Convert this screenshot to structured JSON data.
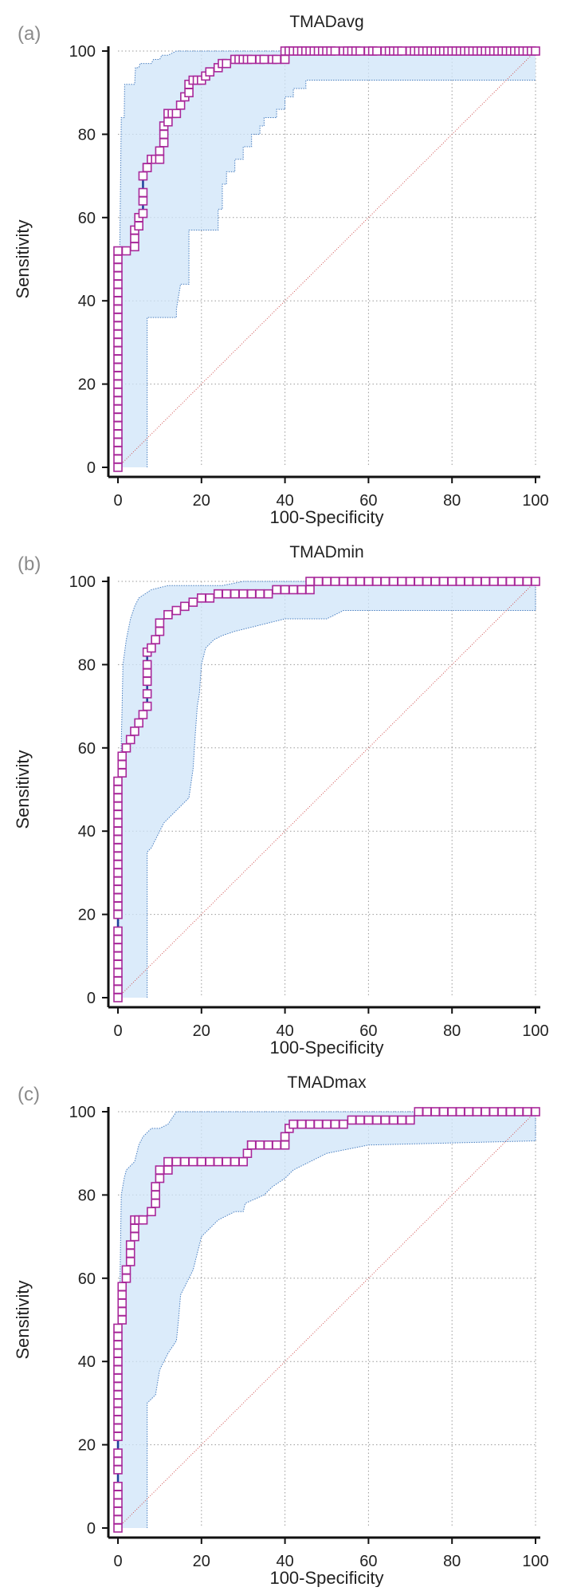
{
  "colors": {
    "marker": "#a8289a",
    "marker_fill": "#ffffff",
    "roc_line": "#1f3f9a",
    "ci_fill": "#cfe4f8",
    "ci_stroke": "#4a7fc0",
    "diagonal": "#d05050",
    "grid": "#9a9a9a",
    "axis": "#111111"
  },
  "chart_data": [
    {
      "panel_label": "(a)",
      "type": "line",
      "title": "TMADavg",
      "xlabel": "100-Specificity",
      "ylabel": "Sensitivity",
      "xlim": [
        0,
        100
      ],
      "ylim": [
        0,
        100
      ],
      "x_ticks": [
        "0",
        "20",
        "40",
        "60",
        "80",
        "100"
      ],
      "y_ticks": [
        "0",
        "20",
        "40",
        "60",
        "80",
        "100"
      ],
      "grid": true,
      "roc": {
        "x": [
          0,
          0,
          0,
          0,
          0,
          0,
          0,
          0,
          0,
          0,
          0,
          0,
          0,
          0,
          0,
          0,
          0,
          0,
          0,
          0,
          0,
          0,
          0,
          0,
          0,
          0,
          0,
          2,
          4,
          4,
          4,
          5,
          5,
          6,
          6,
          6,
          6,
          7,
          7,
          7,
          8,
          9,
          10,
          10,
          11,
          11,
          11,
          12,
          12,
          13,
          14,
          15,
          16,
          17,
          17,
          18,
          19,
          20,
          21,
          22,
          24,
          25,
          26,
          28,
          29,
          30,
          31,
          32,
          34,
          35,
          37,
          38,
          40,
          40,
          41,
          42,
          43,
          44,
          45,
          46,
          47,
          48,
          49,
          50,
          51,
          52,
          54,
          55,
          56,
          57,
          58,
          60,
          61,
          62,
          64,
          65,
          66,
          67,
          68,
          70,
          71,
          72,
          73,
          74,
          75,
          76,
          77,
          78,
          79,
          80,
          81,
          82,
          83,
          84,
          85,
          86,
          87,
          88,
          89,
          90,
          91,
          92,
          93,
          94,
          95,
          96,
          97,
          98,
          99,
          100
        ],
        "y": [
          0,
          2,
          4,
          6,
          8,
          10,
          12,
          14,
          16,
          18,
          20,
          22,
          24,
          26,
          28,
          30,
          32,
          34,
          36,
          38,
          40,
          42,
          44,
          46,
          48,
          50,
          52,
          52,
          53,
          55,
          57,
          58,
          60,
          61,
          64,
          66,
          70,
          72,
          72,
          72,
          74,
          74,
          74,
          76,
          78,
          80,
          82,
          83,
          85,
          85,
          85,
          87,
          89,
          90,
          92,
          93,
          93,
          93,
          94,
          95,
          96,
          97,
          97,
          98,
          98,
          98,
          98,
          98,
          98,
          98,
          98,
          98,
          98,
          100,
          100,
          100,
          100,
          100,
          100,
          100,
          100,
          100,
          100,
          100,
          100,
          100,
          100,
          100,
          100,
          100,
          100,
          100,
          100,
          100,
          100,
          100,
          100,
          100,
          100,
          100,
          100,
          100,
          100,
          100,
          100,
          100,
          100,
          100,
          100,
          100,
          100,
          100,
          100,
          100,
          100,
          100,
          100,
          100,
          100,
          100,
          100,
          100,
          100,
          100,
          100,
          100,
          100,
          100,
          100,
          100
        ]
      },
      "ci_upper": {
        "x": [
          0,
          0.5,
          0.8,
          1.5,
          1.6,
          4,
          4.2,
          5,
          5.3,
          8,
          8.5,
          10,
          10.5,
          12,
          14,
          40,
          40.5,
          100
        ],
        "y": [
          0,
          58,
          84,
          84,
          92,
          92,
          96,
          96,
          97,
          97,
          98,
          98,
          99,
          99,
          100,
          100,
          100,
          100
        ]
      },
      "ci_lower": {
        "x": [
          7,
          7,
          14,
          14,
          15,
          17,
          17,
          24,
          24,
          25,
          25,
          26,
          26,
          28,
          28,
          30,
          30,
          32,
          32,
          34,
          34,
          35,
          35,
          38,
          38,
          40,
          40,
          42,
          42,
          45,
          45,
          55,
          55,
          100
        ],
        "y": [
          0,
          36,
          36,
          38,
          44,
          44,
          57,
          57,
          62,
          62,
          68,
          68,
          71,
          71,
          74,
          74,
          77,
          77,
          80,
          80,
          82,
          82,
          84,
          84,
          86,
          86,
          89,
          89,
          91,
          91,
          93,
          93,
          93,
          93
        ]
      }
    },
    {
      "panel_label": "(b)",
      "type": "line",
      "title": "TMADmin",
      "xlabel": "100-Specificity",
      "ylabel": "Sensitivity",
      "xlim": [
        0,
        100
      ],
      "ylim": [
        0,
        100
      ],
      "x_ticks": [
        "0",
        "20",
        "40",
        "60",
        "80",
        "100"
      ],
      "y_ticks": [
        "0",
        "20",
        "40",
        "60",
        "80",
        "100"
      ],
      "grid": true,
      "roc": {
        "x": [
          0,
          0,
          0,
          0,
          0,
          0,
          0,
          0,
          0,
          0,
          0,
          0,
          0,
          0,
          0,
          0,
          0,
          0,
          0,
          0,
          0,
          0,
          0,
          0,
          0,
          0,
          1,
          1,
          1,
          2,
          3,
          4,
          5,
          6,
          7,
          7,
          7,
          7,
          7,
          7,
          8,
          9,
          10,
          10,
          12,
          14,
          16,
          18,
          20,
          22,
          24,
          26,
          28,
          30,
          32,
          34,
          36,
          38,
          40,
          42,
          44,
          46,
          46,
          48,
          50,
          52,
          54,
          56,
          58,
          60,
          62,
          64,
          66,
          68,
          70,
          72,
          74,
          76,
          78,
          80,
          82,
          84,
          86,
          88,
          90,
          92,
          94,
          96,
          98,
          100
        ],
        "y": [
          0,
          2,
          4,
          6,
          8,
          10,
          12,
          14,
          16,
          20,
          22,
          24,
          26,
          28,
          30,
          32,
          34,
          36,
          38,
          40,
          42,
          44,
          46,
          48,
          50,
          52,
          54,
          56,
          58,
          60,
          62,
          64,
          66,
          68,
          70,
          73,
          76,
          78,
          80,
          83,
          84,
          86,
          88,
          90,
          92,
          93,
          94,
          95,
          96,
          96,
          97,
          97,
          97,
          97,
          97,
          97,
          97,
          98,
          98,
          98,
          98,
          98,
          100,
          100,
          100,
          100,
          100,
          100,
          100,
          100,
          100,
          100,
          100,
          100,
          100,
          100,
          100,
          100,
          100,
          100,
          100,
          100,
          100,
          100,
          100,
          100,
          100,
          100,
          100,
          100
        ]
      },
      "ci_upper": {
        "x": [
          0,
          0.5,
          1,
          1.2,
          2,
          3,
          4,
          5,
          8,
          12,
          15,
          20,
          25,
          30,
          40,
          46,
          100
        ],
        "y": [
          0,
          48,
          70,
          80,
          86,
          91,
          94,
          96,
          98,
          99,
          99,
          99,
          99,
          100,
          100,
          100,
          100
        ]
      },
      "ci_lower": {
        "x": [
          7,
          7,
          8,
          9,
          10,
          11,
          13,
          15,
          17,
          18,
          18.5,
          19,
          19.5,
          20,
          21,
          23,
          25,
          28,
          32,
          36,
          40,
          50,
          54,
          56,
          60,
          100,
          100
        ],
        "y": [
          0,
          35,
          36,
          38,
          40,
          42,
          44,
          46,
          48,
          55,
          63,
          70,
          73,
          80,
          84,
          86,
          87,
          88,
          89,
          90,
          91,
          91,
          93,
          93,
          93,
          93,
          100
        ]
      }
    },
    {
      "panel_label": "(c)",
      "type": "line",
      "title": "TMADmax",
      "xlabel": "100-Specificity",
      "ylabel": "Sensitivity",
      "xlim": [
        0,
        100
      ],
      "ylim": [
        0,
        100
      ],
      "x_ticks": [
        "0",
        "20",
        "40",
        "60",
        "80",
        "100"
      ],
      "y_ticks": [
        "0",
        "20",
        "40",
        "60",
        "80",
        "100"
      ],
      "grid": true,
      "roc": {
        "x": [
          0,
          0,
          0,
          0,
          0,
          0,
          0,
          0,
          0,
          0,
          0,
          0,
          0,
          0,
          0,
          0,
          0,
          0,
          0,
          0,
          0,
          0,
          0,
          1,
          1,
          1,
          1,
          1,
          2,
          2,
          3,
          3,
          3,
          4,
          4,
          4,
          5,
          5,
          6,
          6,
          8,
          9,
          9,
          9,
          10,
          10,
          12,
          12,
          14,
          16,
          18,
          20,
          22,
          24,
          26,
          28,
          30,
          31,
          32,
          32,
          34,
          36,
          38,
          40,
          40,
          41,
          42,
          44,
          46,
          48,
          50,
          52,
          54,
          56,
          58,
          60,
          62,
          64,
          66,
          68,
          70,
          72,
          74,
          76,
          78,
          80,
          82,
          84,
          86,
          88,
          90,
          92,
          94,
          96,
          98,
          100
        ],
        "y": [
          0,
          2,
          4,
          6,
          8,
          10,
          14,
          16,
          18,
          22,
          24,
          26,
          28,
          30,
          32,
          34,
          36,
          38,
          40,
          42,
          44,
          46,
          48,
          50,
          52,
          54,
          56,
          58,
          60,
          62,
          64,
          66,
          68,
          70,
          72,
          74,
          74,
          74,
          74,
          74,
          76,
          78,
          80,
          82,
          84,
          86,
          86,
          88,
          88,
          88,
          88,
          88,
          88,
          88,
          88,
          88,
          88,
          90,
          92,
          92,
          92,
          92,
          92,
          92,
          94,
          96,
          97,
          97,
          97,
          97,
          97,
          97,
          97,
          98,
          98,
          98,
          98,
          98,
          98,
          98,
          98,
          100,
          100,
          100,
          100,
          100,
          100,
          100,
          100,
          100,
          100,
          100,
          100,
          100,
          100,
          100
        ]
      },
      "ci_upper": {
        "x": [
          0,
          0.3,
          0.5,
          0.8,
          1.5,
          2,
          3,
          4,
          5,
          6,
          8,
          10,
          12,
          14,
          30,
          40,
          60,
          100
        ],
        "y": [
          0,
          40,
          60,
          80,
          84,
          86,
          87,
          88,
          92,
          94,
          96,
          96,
          97,
          100,
          100,
          100,
          100,
          100
        ]
      },
      "ci_lower": {
        "x": [
          7,
          7,
          9,
          10,
          11,
          12,
          14,
          14.5,
          15,
          16,
          17,
          18,
          20,
          22,
          24,
          26,
          28,
          30,
          30.5,
          35,
          37,
          40,
          42,
          44,
          46,
          48,
          50,
          60,
          100,
          100
        ],
        "y": [
          0,
          30,
          32,
          38,
          40,
          42,
          45,
          50,
          56,
          58,
          60,
          62,
          70,
          72,
          74,
          75,
          76,
          76,
          78,
          80,
          82,
          84,
          86,
          87,
          88,
          89,
          90,
          92,
          93,
          100
        ]
      }
    }
  ]
}
